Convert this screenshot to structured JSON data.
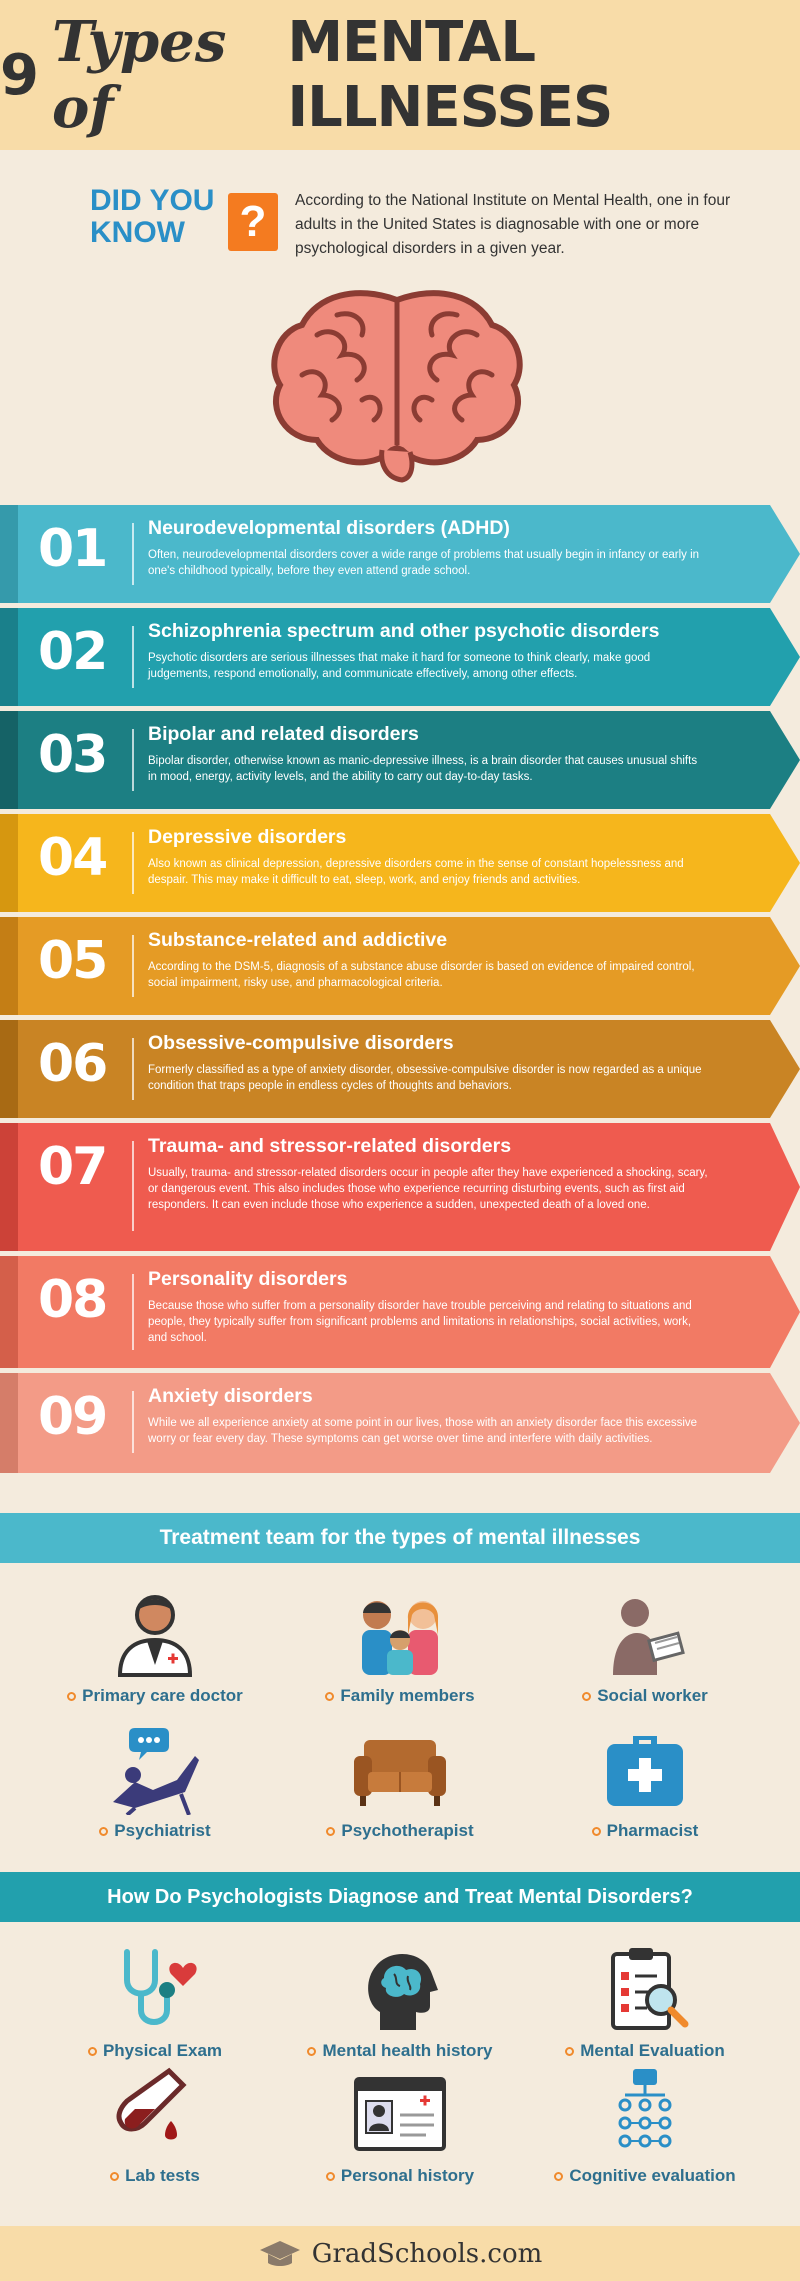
{
  "header": {
    "num": "9",
    "script": "Types of",
    "caps": "MENTAL ILLNESSES"
  },
  "did_you_know": {
    "line1": "DID YOU",
    "line2": "KNOW",
    "mark": "?",
    "text": "According to the National Institute on Mental Health, one in four adults in the United States is diagnosable with one or more psychological disorders in a given year."
  },
  "disorders": [
    {
      "num": "01",
      "title": "Neurodevelopmental disorders (ADHD)",
      "desc": "Often, neurodevelopmental disorders cover a wide range of problems that usually begin in infancy or early in one's childhood typically, before they even attend grade school.",
      "color": "#4bb8cb",
      "fold": "#359aab"
    },
    {
      "num": "02",
      "title": "Schizophrenia spectrum and other psychotic disorders",
      "desc": "Psychotic disorders are serious illnesses that make it hard for someone to think clearly, make good judgements, respond emotionally, and communicate effectively, among other effects.",
      "color": "#22a0ad",
      "fold": "#1a808b"
    },
    {
      "num": "03",
      "title": "Bipolar and related disorders",
      "desc": "Bipolar disorder, otherwise known as manic-depressive illness, is a brain disorder that causes unusual shifts in mood, energy, activity levels, and the ability to carry out day-to-day tasks.",
      "color": "#1c7f83",
      "fold": "#156266"
    },
    {
      "num": "04",
      "title": "Depressive disorders",
      "desc": "Also known as clinical depression, depressive disorders come in the sense of constant hopelessness and despair. This may make it difficult to eat, sleep, work, and enjoy friends and activities.",
      "color": "#f6b61c",
      "fold": "#d69710"
    },
    {
      "num": "05",
      "title": "Substance-related and addictive",
      "desc": "According to the DSM-5, diagnosis of a substance abuse disorder is based on evidence of impaired control, social impairment, risky use, and pharmacological criteria.",
      "color": "#e59b25",
      "fold": "#c47e15"
    },
    {
      "num": "06",
      "title": "Obsessive-compulsive disorders",
      "desc": "Formerly classified as a type of anxiety disorder, obsessive-compulsive disorder is now regarded as a unique condition that traps people in endless cycles of thoughts and behaviors.",
      "color": "#c98424",
      "fold": "#a86a14"
    },
    {
      "num": "07",
      "title": "Trauma- and stressor-related disorders",
      "desc": "Usually, trauma- and stressor-related disorders occur in people after they have experienced a shocking, scary, or dangerous event. This also includes those who experience recurring disturbing events, such as first aid responders. It can even include those who experience a sudden, unexpected death of a loved one.",
      "color": "#ef5b4f",
      "fold": "#cc4238"
    },
    {
      "num": "08",
      "title": "Personality disorders",
      "desc": "Because those who suffer from a personality disorder have trouble perceiving and relating to situations and people, they typically suffer from significant problems and limitations in relationships, social activities, work, and school.",
      "color": "#f27a64",
      "fold": "#d45f4a"
    },
    {
      "num": "09",
      "title": "Anxiety disorders",
      "desc": "While we all experience anxiety at some point in our lives, those with an anxiety disorder face this excessive worry or fear every day. These symptoms can get worse over time and interfere with daily activities.",
      "color": "#f39b87",
      "fold": "#d57d69"
    }
  ],
  "treatment": {
    "heading": "Treatment team for the types of mental illnesses",
    "color": "#4bb8cb",
    "items": [
      {
        "label": "Primary care doctor",
        "icon": "doctor-icon"
      },
      {
        "label": "Family members",
        "icon": "family-icon"
      },
      {
        "label": "Social worker",
        "icon": "social-worker-icon"
      },
      {
        "label": "Psychiatrist",
        "icon": "psychiatrist-icon"
      },
      {
        "label": "Psychotherapist",
        "icon": "couch-icon"
      },
      {
        "label": "Pharmacist",
        "icon": "first-aid-kit-icon"
      }
    ]
  },
  "diagnose": {
    "heading": "How Do Psychologists Diagnose and Treat Mental Disorders?",
    "color": "#22a0ad",
    "items": [
      {
        "label": "Physical Exam",
        "icon": "stethoscope-icon"
      },
      {
        "label": "Mental health history",
        "icon": "head-brain-icon"
      },
      {
        "label": "Mental Evaluation",
        "icon": "clipboard-magnifier-icon"
      },
      {
        "label": "Lab tests",
        "icon": "test-tube-icon"
      },
      {
        "label": "Personal history",
        "icon": "id-card-icon"
      },
      {
        "label": "Cognitive evaluation",
        "icon": "flowchart-icon"
      }
    ]
  },
  "footer": {
    "brand": "GradSchools.com",
    "icon": "graduation-cap-icon"
  }
}
